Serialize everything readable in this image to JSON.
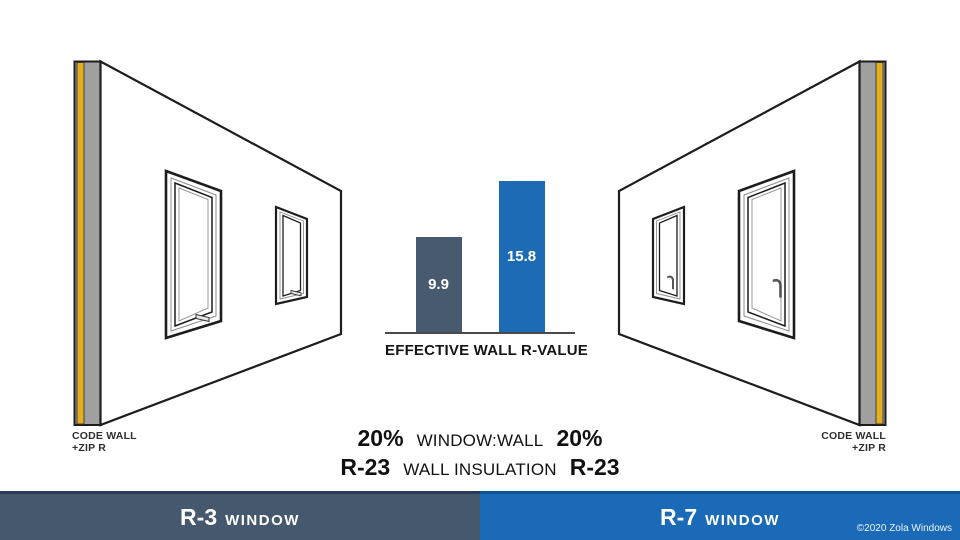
{
  "chart_data": {
    "type": "bar",
    "categories": [
      "Code wall + Zip R with R-3 window",
      "Code wall + Zip R with R-7 window"
    ],
    "values": [
      9.9,
      15.8
    ],
    "bar_colors": [
      "#485a70",
      "#1d6bb5"
    ],
    "title": "EFFECTIVE WALL R-VALUE",
    "xlabel": "",
    "ylabel": "",
    "ylim": [
      0,
      16.5
    ],
    "grid": false,
    "value_labels_inside_bars": true
  },
  "walls": {
    "left": {
      "caption_line1": "CODE WALL",
      "caption_line2": "+ZIP R"
    },
    "right": {
      "caption_line1": "CODE WALL",
      "caption_line2": "+ZIP R"
    }
  },
  "specs": {
    "left_ratio": "20%",
    "ratio_label": "WINDOW:WALL",
    "right_ratio": "20%",
    "left_insulation": "R-23",
    "insulation_label": "WALL INSULATION",
    "right_insulation": "R-23"
  },
  "footer": {
    "left_label_strong": "R-3",
    "left_label_rest": "WINDOW",
    "right_label_strong": "R-7",
    "right_label_rest": "WINDOW",
    "copyright": "©2020 Zola Windows",
    "left_bg": "#46586e",
    "right_bg": "#1a6ab7"
  },
  "colors": {
    "zip_sheathing_yellow": "#e2b01e",
    "wall_edge_gray": "#a0a0a0",
    "outline_dark": "#1d1d1d",
    "accent_blue": "#1d6bb5",
    "slate": "#485a70"
  }
}
